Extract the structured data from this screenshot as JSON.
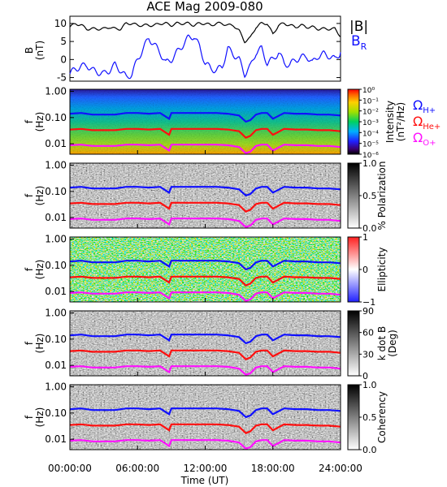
{
  "title": "ACE Mag 2009-080",
  "xlabel": "Time (UT)",
  "x_ticks": [
    "00:00:00",
    "06:00:00",
    "12:00:00",
    "18:00:00",
    "24:00:00"
  ],
  "x_tick_hours": [
    0,
    6,
    12,
    18,
    24
  ],
  "x_range_hours": [
    0,
    24
  ],
  "freq_ticks": [
    "1.00",
    "0.10",
    "0.01"
  ],
  "freq_tick_values": [
    1.0,
    0.1,
    0.01
  ],
  "freq_range_hz": [
    0.004,
    1.2
  ],
  "colors": {
    "B_total": "#000000",
    "B_R": "#1010ff",
    "H_plus": "#1010ff",
    "He_plus": "#ff1010",
    "O_plus": "#ff10ff"
  },
  "legend_labels": {
    "B_total": "|B|",
    "B_R": "B",
    "B_R_sub": "R",
    "H_plus": "Ω",
    "H_plus_sub": "H+",
    "He_plus": "Ω",
    "He_plus_sub": "He+",
    "O_plus": "Ω",
    "O_plus_sub": "O+"
  },
  "chart_data": [
    {
      "type": "line",
      "panel": "B",
      "ylabel": "B",
      "yunits": "(nT)",
      "ylim": [
        -6,
        12
      ],
      "y_ticks": [
        "10",
        "5",
        "0",
        "-5"
      ],
      "y_tick_values": [
        10,
        5,
        0,
        -5
      ],
      "x_hours": [
        0,
        0.5,
        1,
        1.5,
        2,
        2.5,
        3,
        3.5,
        4,
        4.5,
        5,
        5.5,
        6,
        6.5,
        7,
        7.5,
        8,
        8.5,
        9,
        9.5,
        10,
        10.5,
        11,
        11.5,
        12,
        12.5,
        13,
        13.5,
        14,
        14.5,
        15,
        15.5,
        16,
        16.5,
        17,
        17.5,
        18,
        18.5,
        19,
        19.5,
        20,
        20.5,
        21,
        21.5,
        22,
        22.5,
        23,
        23.5,
        24
      ],
      "series": [
        {
          "name": "|B|",
          "values": [
            9,
            10,
            9.5,
            8.5,
            8.5,
            8.5,
            8.5,
            9,
            8.5,
            8.5,
            10,
            10,
            9.5,
            9.5,
            9.5,
            9.5,
            10,
            10,
            9.5,
            10,
            10,
            10,
            9.5,
            10,
            10,
            9.5,
            10,
            10,
            9.5,
            9.5,
            8,
            5,
            6,
            9,
            10,
            10,
            7,
            9.5,
            10,
            9.5,
            9,
            9.5,
            9,
            9,
            8.5,
            8.5,
            8.5,
            8.5,
            6.5
          ]
        },
        {
          "name": "B_R",
          "values": [
            -4,
            -2.5,
            -2,
            -1.5,
            -3,
            -3.5,
            -4,
            -3,
            -1.5,
            -3,
            -5,
            -4,
            0,
            3,
            6,
            4,
            2,
            -1,
            0,
            2,
            4,
            6,
            6.5,
            3.5,
            -1,
            -2.5,
            -3,
            -2,
            3,
            1.5,
            0,
            -4,
            -2,
            2,
            3,
            -1,
            0,
            2,
            -1,
            -1.5,
            0,
            0.5,
            1,
            -1,
            1,
            1.5,
            1,
            0,
            2
          ]
        }
      ]
    },
    {
      "type": "heatmap",
      "panel": "intensity",
      "ylabel": "f",
      "yunits": "(Hz)",
      "colorbar_label": "Intensity",
      "colorbar_units": "(nT²/Hz)",
      "colorbar_ticks": [
        "10⁰",
        "10⁻¹",
        "10⁻²",
        "10⁻³",
        "10⁻⁴",
        "10⁻⁵",
        "10⁻⁶"
      ],
      "colorbar_range": [
        -6,
        0
      ],
      "colorbar_scale": "log"
    },
    {
      "type": "heatmap",
      "panel": "polarization",
      "ylabel": "f",
      "yunits": "(Hz)",
      "colorbar_label": "% Polarization",
      "colorbar_ticks": [
        "1.0",
        "0.5",
        "0.0"
      ],
      "colorbar_range": [
        0,
        1
      ]
    },
    {
      "type": "heatmap",
      "panel": "ellipticity",
      "ylabel": "f",
      "yunits": "(Hz)",
      "colorbar_label": "Ellipticity",
      "colorbar_ticks": [
        "1",
        "0",
        "−1"
      ],
      "colorbar_range": [
        -1,
        1
      ]
    },
    {
      "type": "heatmap",
      "panel": "kdotb",
      "ylabel": "f",
      "yunits": "(Hz)",
      "colorbar_label": "k dot B",
      "colorbar_units": "(Deg)",
      "colorbar_ticks": [
        "90",
        "60",
        "30",
        "0"
      ],
      "colorbar_range": [
        0,
        90
      ]
    },
    {
      "type": "heatmap",
      "panel": "coherency",
      "ylabel": "f",
      "yunits": "(Hz)",
      "colorbar_label": "Coherency",
      "colorbar_ticks": [
        "1.0",
        "0.5",
        "0.0"
      ],
      "colorbar_range": [
        0,
        1
      ]
    },
    {
      "type": "line",
      "panel": "gyrofrequencies (overlaid on all spectrogram panels)",
      "x_hours": [
        0,
        1,
        2,
        3,
        4,
        5,
        6,
        7,
        8,
        8.8,
        9,
        10,
        11,
        12,
        13,
        14,
        15,
        15.6,
        16,
        16.5,
        17,
        17.5,
        18,
        19,
        20,
        21,
        22,
        23,
        24
      ],
      "series": [
        {
          "name": "Ω H+",
          "values": [
            0.14,
            0.15,
            0.13,
            0.13,
            0.13,
            0.15,
            0.15,
            0.14,
            0.15,
            0.09,
            0.15,
            0.15,
            0.15,
            0.15,
            0.15,
            0.14,
            0.12,
            0.07,
            0.08,
            0.13,
            0.15,
            0.15,
            0.09,
            0.15,
            0.14,
            0.14,
            0.13,
            0.13,
            0.12
          ]
        },
        {
          "name": "Ω He+",
          "values": [
            0.035,
            0.037,
            0.033,
            0.033,
            0.033,
            0.037,
            0.037,
            0.035,
            0.037,
            0.022,
            0.037,
            0.037,
            0.037,
            0.037,
            0.037,
            0.035,
            0.03,
            0.017,
            0.02,
            0.033,
            0.037,
            0.037,
            0.022,
            0.037,
            0.035,
            0.035,
            0.033,
            0.033,
            0.03
          ]
        },
        {
          "name": "Ω O+",
          "values": [
            0.0088,
            0.0093,
            0.0083,
            0.0083,
            0.0083,
            0.0093,
            0.0093,
            0.0088,
            0.0093,
            0.0055,
            0.0093,
            0.0093,
            0.0093,
            0.0093,
            0.0093,
            0.0088,
            0.0075,
            0.0044,
            0.005,
            0.0083,
            0.0093,
            0.0093,
            0.0055,
            0.0093,
            0.0088,
            0.0088,
            0.0083,
            0.0083,
            0.0075
          ]
        }
      ]
    }
  ]
}
